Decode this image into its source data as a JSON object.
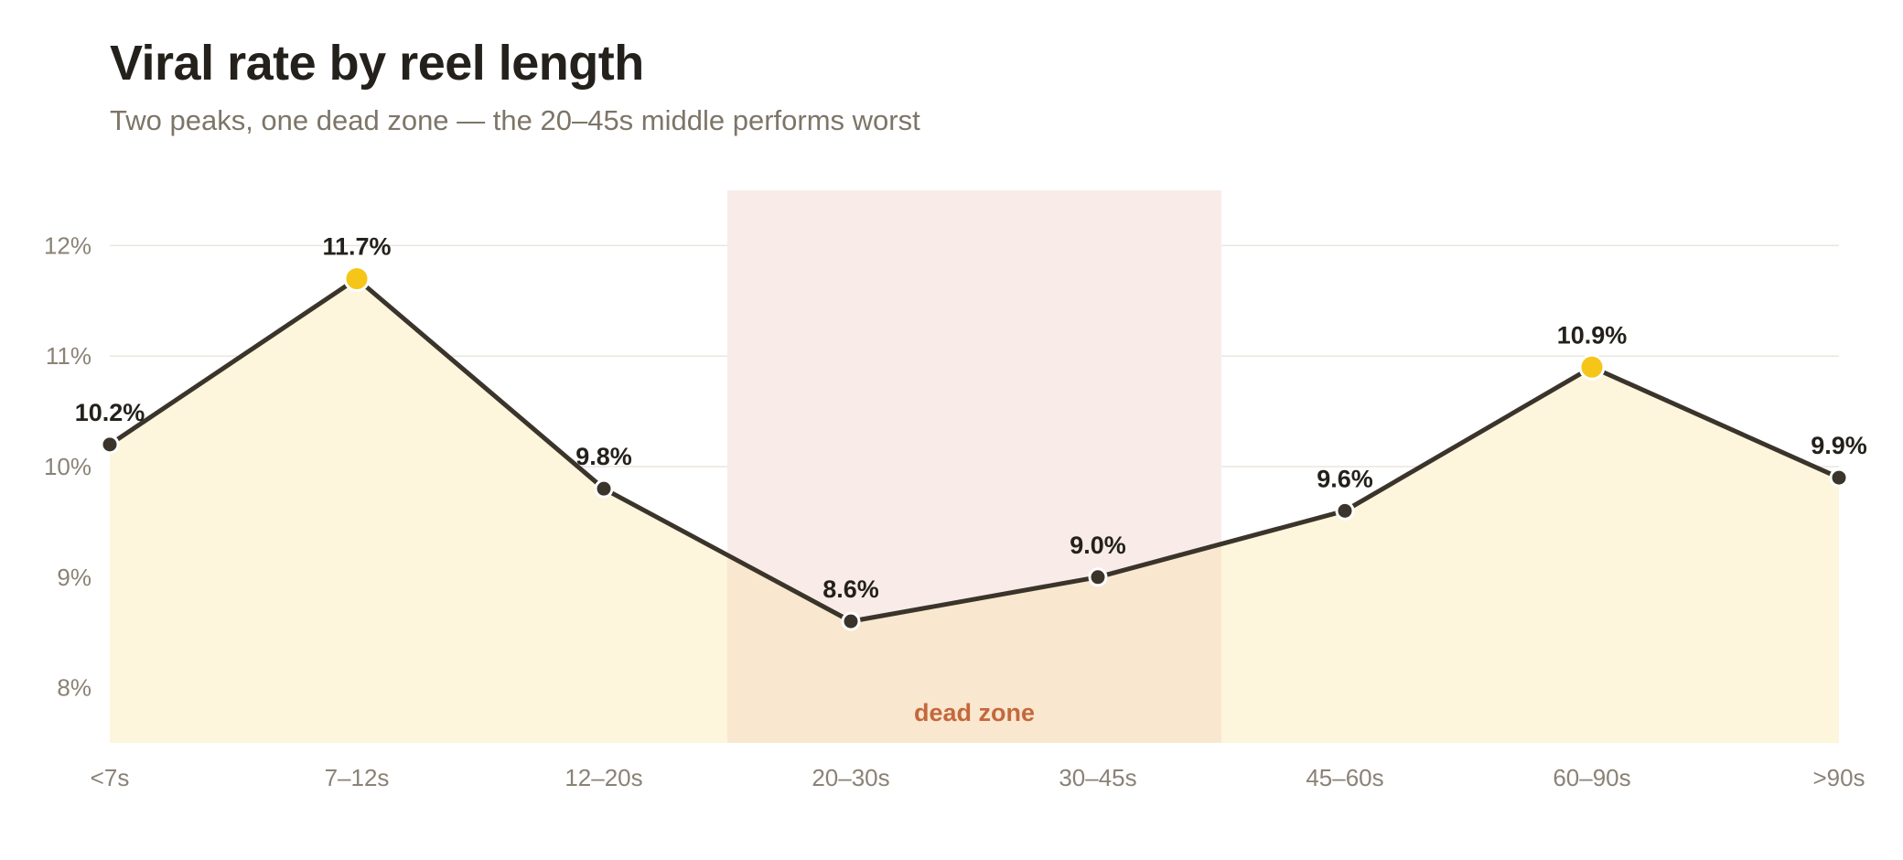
{
  "chart_data": {
    "type": "line",
    "title": "Viral rate by reel length",
    "subtitle": "Two peaks, one dead zone — the 20–45s middle performs worst",
    "categories": [
      "<7s",
      "7–12s",
      "12–20s",
      "20–30s",
      "30–45s",
      "45–60s",
      "60–90s",
      ">90s"
    ],
    "values": [
      10.2,
      11.7,
      9.8,
      8.6,
      9.0,
      9.6,
      10.9,
      9.9
    ],
    "data_labels": [
      "10.2%",
      "11.7%",
      "9.8%",
      "8.6%",
      "9.0%",
      "9.6%",
      "10.9%",
      "9.9%"
    ],
    "highlight_indices": [
      1,
      6
    ],
    "yticks": [
      8,
      9,
      10,
      11,
      12
    ],
    "ytick_labels": [
      "8%",
      "9%",
      "10%",
      "11%",
      "12%"
    ],
    "ylim": [
      7.5,
      12.5
    ],
    "xlabel": "",
    "ylabel": "",
    "grid": true,
    "shaded_region": {
      "label": "dead zone",
      "from": "20–30s",
      "to": "30–45s"
    },
    "colors": {
      "line": "#3a342b",
      "area": "#fdf5dc",
      "highlight": "#f5c518",
      "zone": "#f9ece8",
      "zone_overlap": "#f9e8cf",
      "zone_text": "#c4683d",
      "grid": "#ebe6de"
    }
  }
}
